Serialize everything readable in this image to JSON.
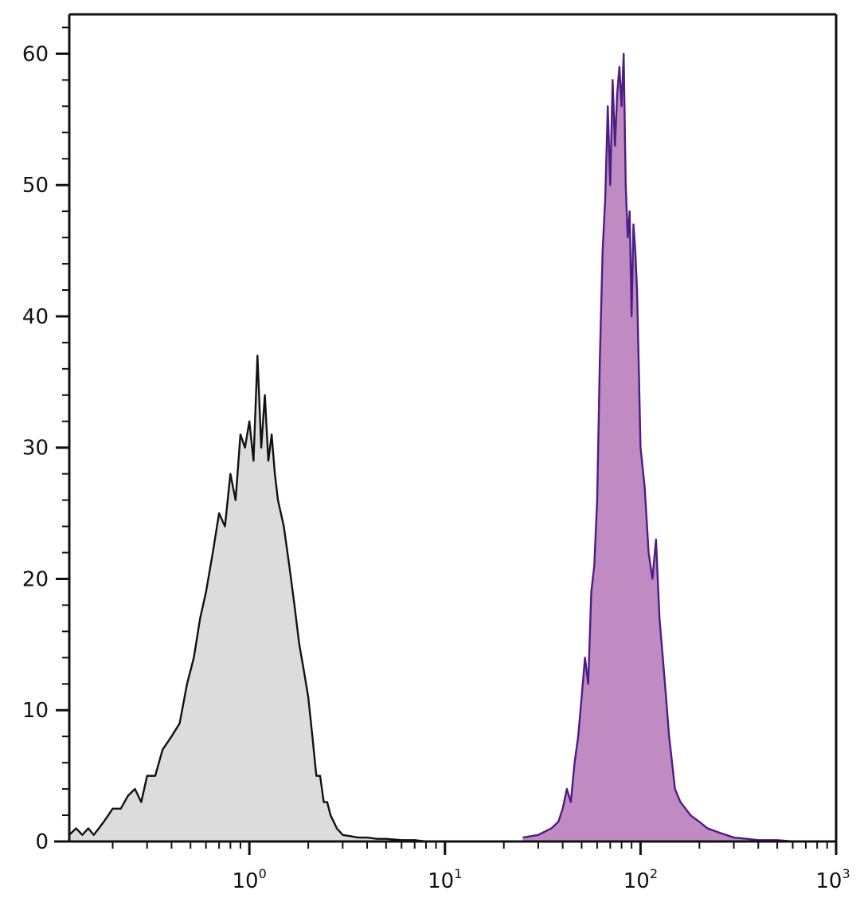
{
  "chart_data": {
    "type": "area",
    "title": "",
    "xlabel": "",
    "ylabel": "",
    "x_scale": "log",
    "xlim": [
      0.12,
      1000
    ],
    "ylim": [
      0,
      63
    ],
    "grid": false,
    "x_ticks": [
      {
        "base": "10",
        "exp": "0",
        "value": 1
      },
      {
        "base": "10",
        "exp": "1",
        "value": 10
      },
      {
        "base": "10",
        "exp": "2",
        "value": 100
      },
      {
        "base": "10",
        "exp": "3",
        "value": 1000
      }
    ],
    "y_ticks": [
      {
        "label": "0",
        "value": 0
      },
      {
        "label": "10",
        "value": 10
      },
      {
        "label": "20",
        "value": 20
      },
      {
        "label": "30",
        "value": 30
      },
      {
        "label": "40",
        "value": 40
      },
      {
        "label": "50",
        "value": 50
      },
      {
        "label": "60",
        "value": 60
      }
    ],
    "series": [
      {
        "fill": "#dcdcdc",
        "stroke": "#111111",
        "x": [
          0.12,
          0.13,
          0.14,
          0.15,
          0.16,
          0.17,
          0.18,
          0.19,
          0.2,
          0.22,
          0.24,
          0.26,
          0.28,
          0.3,
          0.33,
          0.36,
          0.4,
          0.44,
          0.48,
          0.52,
          0.56,
          0.6,
          0.65,
          0.7,
          0.75,
          0.8,
          0.85,
          0.9,
          0.95,
          1.0,
          1.05,
          1.1,
          1.15,
          1.2,
          1.25,
          1.3,
          1.35,
          1.4,
          1.5,
          1.6,
          1.7,
          1.8,
          1.9,
          2.0,
          2.1,
          2.2,
          2.3,
          2.4,
          2.5,
          2.6,
          2.7,
          2.8,
          3.0,
          3.3,
          3.6,
          4.0,
          4.5,
          5.0,
          6.0,
          7.0,
          8.0
        ],
        "y": [
          0.5,
          1,
          0.5,
          1,
          0.5,
          1,
          1.5,
          2,
          2.5,
          2.5,
          3.5,
          4,
          3,
          5,
          5,
          7,
          8,
          9,
          12,
          14,
          17,
          19,
          22,
          25,
          24,
          28,
          26,
          31,
          30,
          32,
          29,
          37,
          30,
          34,
          29,
          31,
          28,
          26,
          24,
          21,
          18,
          15,
          13,
          11,
          8,
          5,
          5,
          3,
          3,
          2,
          1.5,
          1,
          0.5,
          0.4,
          0.3,
          0.3,
          0.2,
          0.2,
          0.1,
          0.1,
          0
        ]
      },
      {
        "fill": "#c08ac3",
        "stroke": "#4c1d82",
        "x": [
          25,
          30,
          35,
          38,
          40,
          42,
          44,
          46,
          48,
          50,
          52,
          54,
          56,
          58,
          60,
          62,
          64,
          66,
          68,
          70,
          72,
          74,
          76,
          78,
          80,
          82,
          84,
          86,
          88,
          90,
          92,
          94,
          96,
          98,
          100,
          105,
          110,
          115,
          120,
          125,
          130,
          135,
          140,
          145,
          150,
          160,
          170,
          180,
          200,
          220,
          250,
          300,
          350,
          400,
          500,
          600
        ],
        "y": [
          0.3,
          0.5,
          1,
          1.5,
          2.5,
          4,
          3,
          6,
          8,
          11,
          14,
          12,
          19,
          21,
          26,
          37,
          45,
          49,
          56,
          50,
          58,
          53,
          57,
          59,
          56,
          60,
          50,
          46,
          48,
          40,
          47,
          45,
          42,
          36,
          30,
          27,
          22,
          20,
          23,
          17,
          14,
          11,
          8,
          6,
          4,
          3,
          2.5,
          2,
          1.5,
          1,
          0.7,
          0.3,
          0.2,
          0.1,
          0.1,
          0
        ]
      }
    ],
    "axis_color": "#111111"
  }
}
